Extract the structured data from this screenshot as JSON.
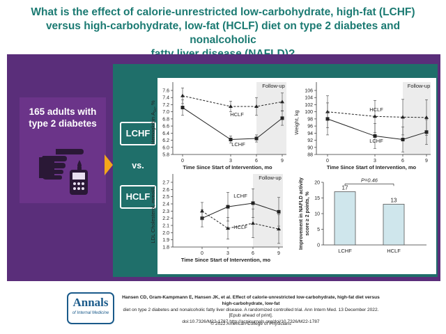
{
  "header": {
    "title_lines": [
      "What is the effect of calorie-unrestricted low-carbohydrate, high-fat (LCHF)",
      "versus high-carbohydrate, low-fat (HCLF) diet on type 2 diabetes and nonalcoholic",
      "fatty liver disease (NAFLD)?"
    ]
  },
  "left_panel": {
    "population_lines": [
      "165 adults with",
      "type 2 diabetes"
    ],
    "icon": "hand-glucose-meter-icon"
  },
  "arms": {
    "lchf": "LCHF",
    "vs": "vs.",
    "hclf": "HCLF"
  },
  "colors": {
    "title": "#1b7a72",
    "purple_band": "#5a2e7a",
    "teal_panel": "#1f6f6a",
    "arrow": "#f3a71b",
    "bar_fill": "#cfe6ec"
  },
  "chart_data": [
    {
      "type": "line",
      "title": "",
      "ylabel_main": "Hemoglobin A",
      "ylabel_sub": "1c",
      "ylabel_unit": ", %",
      "xlabel": "Time Since Start of Intervention, mo",
      "x": [
        0,
        3,
        6,
        9
      ],
      "xticks": [
        "0",
        "3",
        "6",
        "9"
      ],
      "yticks": [
        "5.8",
        "6.0",
        "6.2",
        "6.4",
        "6.6",
        "6.8",
        "7.0",
        "7.2",
        "7.4",
        "7.6"
      ],
      "ylim": [
        5.8,
        7.6
      ],
      "followup_label": "Follow-up",
      "series": [
        {
          "name": "HCLF",
          "values": [
            7.45,
            7.15,
            7.15,
            7.28
          ],
          "err": [
            0.22,
            0.15,
            0.25,
            0.25
          ],
          "style": "dashed"
        },
        {
          "name": "LCHF",
          "values": [
            7.12,
            6.22,
            6.25,
            6.82
          ],
          "err": [
            0.22,
            0.1,
            0.1,
            0.2
          ],
          "style": "solid"
        }
      ]
    },
    {
      "type": "line",
      "title": "",
      "ylabel": "Weight, kg",
      "xlabel": "Time Since Start of Intervention, mo",
      "x": [
        0,
        3,
        6,
        9
      ],
      "xticks": [
        "0",
        "3",
        "6",
        "9"
      ],
      "yticks": [
        "88",
        "90",
        "92",
        "94",
        "96",
        "98",
        "100",
        "102",
        "104",
        "106"
      ],
      "ylim": [
        88,
        106
      ],
      "followup_label": "Follow-up",
      "series": [
        {
          "name": "HCLF",
          "values": [
            100.0,
            98.7,
            98.5,
            98.4
          ],
          "err": [
            4.5,
            4.5,
            5.0,
            5.0
          ],
          "style": "dashed"
        },
        {
          "name": "LCHF",
          "values": [
            98.0,
            93.2,
            92.2,
            94.3
          ],
          "err": [
            4.5,
            3.5,
            3.5,
            3.5
          ],
          "style": "solid"
        }
      ]
    },
    {
      "type": "line",
      "title": "",
      "ylabel": "LDL Cholesterol, mmol/L",
      "xlabel": "Time Since Start of Intervention, mo",
      "x": [
        0,
        3,
        6,
        9
      ],
      "xticks": [
        "0",
        "3",
        "6",
        "9"
      ],
      "yticks": [
        "1.8",
        "1.9",
        "2.0",
        "2.1",
        "2.2",
        "2.3",
        "2.4",
        "2.5",
        "2.6",
        "2.7"
      ],
      "ylim": [
        1.8,
        2.7
      ],
      "followup_label": "Follow-up",
      "series": [
        {
          "name": "LCHF",
          "values": [
            2.2,
            2.36,
            2.41,
            2.29
          ],
          "err": [
            0.12,
            0.2,
            0.2,
            0.2
          ],
          "style": "solid"
        },
        {
          "name": "HCLF",
          "values": [
            2.3,
            2.06,
            2.13,
            2.05
          ],
          "err": [
            0.12,
            0.15,
            0.2,
            0.2
          ],
          "style": "dashed"
        }
      ]
    },
    {
      "type": "bar",
      "title": "",
      "ylabel_lines": [
        "Improvement in NAFLD activity",
        "score ≥ 2 points, %"
      ],
      "categories": [
        "LCHF",
        "HCLF"
      ],
      "values": [
        17,
        13
      ],
      "yticks": [
        "0",
        "5",
        "10",
        "15",
        "20"
      ],
      "ylim": [
        0,
        20
      ],
      "annotation": "P=0.46"
    }
  ],
  "footer": {
    "logo_main": "Annals",
    "logo_sub": "of Internal Medicine",
    "citation_lines": [
      "Hansen CD, Gram-Kampmann E, Hansen JK, et al. Effect of calorie-unrestricted low-carbohydrate, high-fat diet versus high-carbohydrate, low-fat",
      "diet on type 2 diabetes and nonalcoholic fatty liver disease. A randomized controlled trial. Ann Intern Med. 13 December 2022. [Epub ahead of print].",
      "doi:10.7326/M22-1787 http://acpjournals.org/doi/10.7326/M22-1787"
    ],
    "copyright": "© 2022 American College of Physicians"
  }
}
